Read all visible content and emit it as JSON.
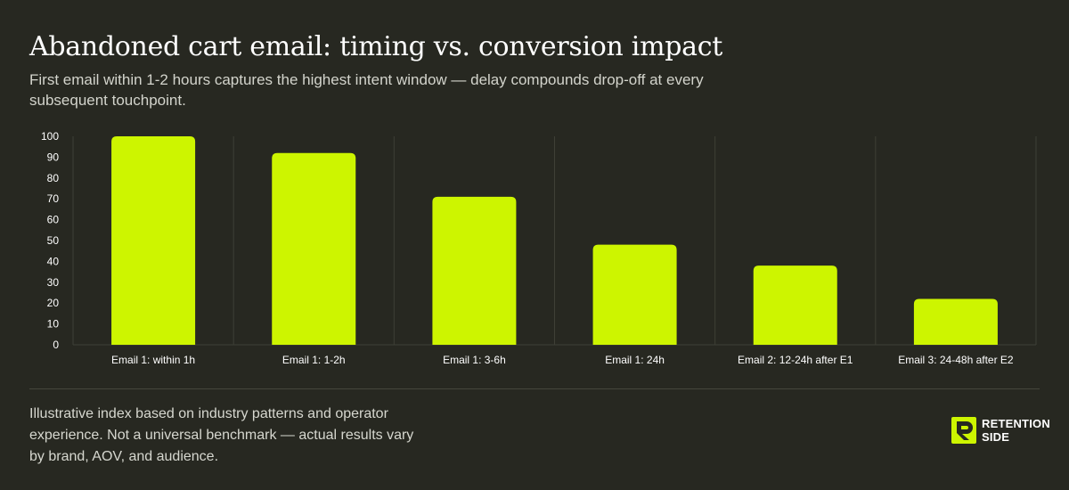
{
  "title": "Abandoned cart email: timing vs. conversion impact",
  "subtitle": "First email within 1-2 hours captures the highest intent window — delay compounds drop-off at every subsequent touchpoint.",
  "footnote": "Illustrative index based on industry patterns and operator experience. Not a universal benchmark — actual results vary by brand, AOV, and audience.",
  "brand": {
    "line1": "RETENTION",
    "line2": "SIDE"
  },
  "colors": {
    "background": "#272821",
    "bar": "#cdf500",
    "grid": "#3e3f36",
    "text": "#ffffff"
  },
  "chart_data": {
    "type": "bar",
    "categories": [
      "Email 1: within 1h",
      "Email 1: 1-2h",
      "Email 1: 3-6h",
      "Email 1: 24h",
      "Email 2: 12-24h after E1",
      "Email 3: 24-48h after E2"
    ],
    "values": [
      100,
      92,
      71,
      48,
      38,
      22
    ],
    "ylim": [
      0,
      100
    ],
    "yticks": [
      0,
      10,
      20,
      30,
      40,
      50,
      60,
      70,
      80,
      90,
      100
    ],
    "xlabel": "",
    "ylabel": "",
    "grid": "vertical"
  }
}
